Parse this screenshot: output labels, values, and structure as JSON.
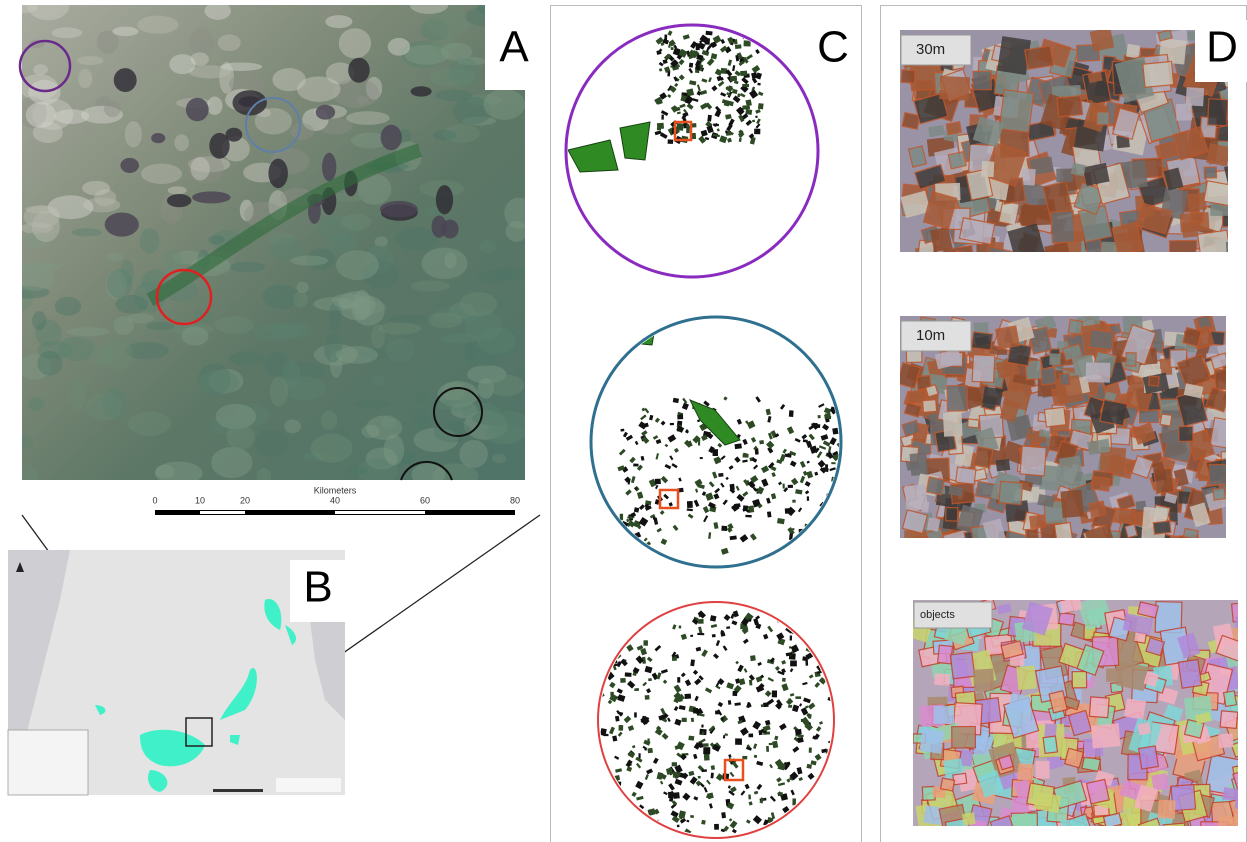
{
  "panels": {
    "a": {
      "letter": "A",
      "scale_title": "Kilometers",
      "scale_labels": [
        "0",
        "10",
        "20",
        "40",
        "60",
        "80"
      ]
    },
    "b": {
      "letter": "B"
    },
    "c": {
      "letter": "C"
    },
    "d": {
      "letter": "D",
      "image_labels": [
        "30m",
        "10m",
        "objects"
      ]
    }
  }
}
